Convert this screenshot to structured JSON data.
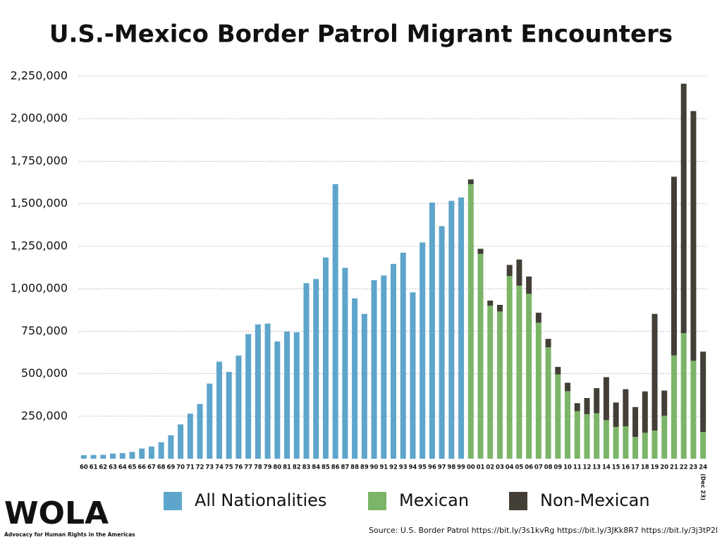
{
  "chart_data": {
    "type": "stacked-bar",
    "title": "U.S.-Mexico Border Patrol Migrant Encounters",
    "categories": [
      "60",
      "61",
      "62",
      "63",
      "64",
      "65",
      "66",
      "67",
      "68",
      "69",
      "70",
      "71",
      "72",
      "73",
      "74",
      "75",
      "76",
      "77",
      "78",
      "79",
      "80",
      "81",
      "82",
      "83",
      "84",
      "85",
      "86",
      "87",
      "88",
      "89",
      "90",
      "91",
      "92",
      "93",
      "94",
      "95",
      "96",
      "97",
      "98",
      "99",
      "00",
      "01",
      "02",
      "03",
      "04",
      "05",
      "06",
      "07",
      "08",
      "09",
      "10",
      "11",
      "12",
      "13",
      "14",
      "15",
      "16",
      "17",
      "18",
      "19",
      "20",
      "21",
      "22",
      "23",
      "24"
    ],
    "series": [
      {
        "name": "All Nationalities",
        "color": "#5ea5cb",
        "values": [
          21000,
          22000,
          23000,
          30000,
          33000,
          40000,
          60000,
          72000,
          97000,
          138000,
          202000,
          265000,
          322000,
          442000,
          571000,
          511000,
          607000,
          733000,
          790000,
          795000,
          690000,
          748000,
          744000,
          1033000,
          1057000,
          1184000,
          1615000,
          1123000,
          943000,
          852000,
          1050000,
          1078000,
          1146000,
          1212000,
          979000,
          1272000,
          1507000,
          1368000,
          1517000,
          1537000,
          null,
          null,
          null,
          null,
          null,
          null,
          null,
          null,
          null,
          null,
          null,
          null,
          null,
          null,
          null,
          null,
          null,
          null,
          null,
          null,
          null,
          null,
          null,
          null,
          null
        ]
      },
      {
        "name": "Mexican",
        "color": "#7db568",
        "values": [
          null,
          null,
          null,
          null,
          null,
          null,
          null,
          null,
          null,
          null,
          null,
          null,
          null,
          null,
          null,
          null,
          null,
          null,
          null,
          null,
          null,
          null,
          null,
          null,
          null,
          null,
          null,
          null,
          null,
          null,
          null,
          null,
          null,
          null,
          null,
          null,
          null,
          null,
          null,
          null,
          1615000,
          1205000,
          900000,
          866000,
          1074000,
          1018000,
          970000,
          800000,
          655000,
          496000,
          397000,
          280000,
          262000,
          267000,
          227000,
          187000,
          191000,
          128000,
          153000,
          166000,
          253000,
          608000,
          739000,
          576000,
          157000
        ]
      },
      {
        "name": "Non-Mexican",
        "color": "#433f36",
        "values": [
          null,
          null,
          null,
          null,
          null,
          null,
          null,
          null,
          null,
          null,
          null,
          null,
          null,
          null,
          null,
          null,
          null,
          null,
          null,
          null,
          null,
          null,
          null,
          null,
          null,
          null,
          null,
          null,
          null,
          null,
          null,
          null,
          null,
          null,
          null,
          null,
          null,
          null,
          null,
          null,
          28000,
          30000,
          30000,
          39000,
          66000,
          154000,
          102000,
          59000,
          50000,
          44000,
          50000,
          47000,
          95000,
          148000,
          253000,
          144000,
          218000,
          176000,
          243000,
          686000,
          148000,
          1051000,
          1467000,
          1469000,
          473000
        ]
      }
    ],
    "annotation": "(Dec 23)",
    "ylim": [
      0,
      2250000
    ],
    "yticks": [
      {
        "value": 250000,
        "label": "250,000"
      },
      {
        "value": 500000,
        "label": "500,000"
      },
      {
        "value": 750000,
        "label": "750,000"
      },
      {
        "value": 1000000,
        "label": "1,000,000"
      },
      {
        "value": 1250000,
        "label": "1,250,000"
      },
      {
        "value": 1500000,
        "label": "1,500,000"
      },
      {
        "value": 1750000,
        "label": "1,750,000"
      },
      {
        "value": 2000000,
        "label": "2,000,000"
      },
      {
        "value": 2250000,
        "label": "2,250,000"
      }
    ],
    "grid": true
  },
  "logo": {
    "name": "WOLA",
    "tagline": "Advocacy for Human Rights in the Americas"
  },
  "source": "Source: U.S. Border Patrol https://bit.ly/3s1kvRg  https://bit.ly/3JKk8R7 https://bit.ly/3j3tP2l"
}
